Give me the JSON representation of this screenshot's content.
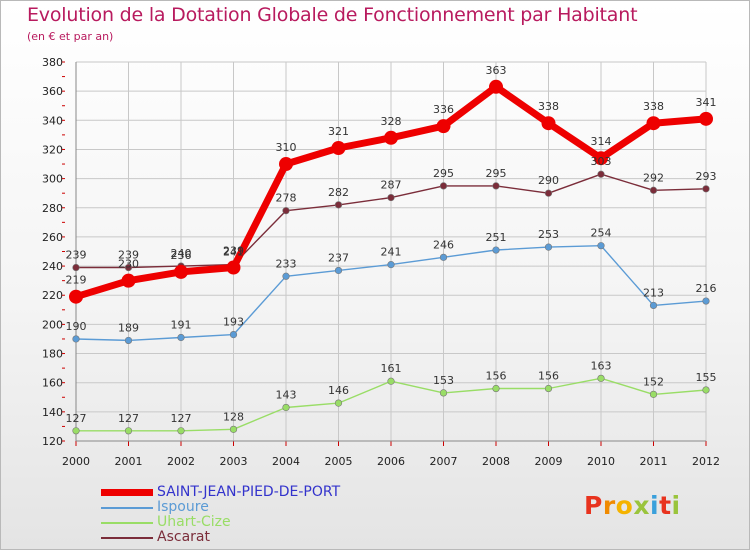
{
  "header": {
    "title": "Evolution de la Dotation Globale de Fonctionnement par Habitant",
    "subtitle": "(en € et par an)"
  },
  "brand": {
    "logo_text": "Proxiti",
    "colors": [
      "#e8331e",
      "#f08a00",
      "#f5b300",
      "#9ac43c",
      "#3aa0db",
      "#e8331e",
      "#9ac43c"
    ]
  },
  "colors": {
    "title": "#b81a5e",
    "grid": "#c8c8c8",
    "axis_tick_marks": "#cc0000"
  },
  "chart_data": {
    "type": "line",
    "title": "Evolution de la Dotation Globale de Fonctionnement par Habitant",
    "subtitle": "(en € et par an)",
    "x": [
      "2000",
      "2001",
      "2002",
      "2003",
      "2004",
      "2005",
      "2006",
      "2007",
      "2008",
      "2009",
      "2010",
      "2011",
      "2012"
    ],
    "ylim": [
      120,
      380
    ],
    "yticks": [
      120,
      140,
      160,
      180,
      200,
      220,
      240,
      260,
      280,
      300,
      320,
      340,
      360,
      380
    ],
    "grid": true,
    "legend_position": "bottom-left",
    "series": [
      {
        "name": "SAINT-JEAN-PIED-DE-PORT",
        "color": "#ee0000",
        "emphasis": true,
        "legend_color": "#3333cc",
        "values": [
          219,
          230,
          236,
          239,
          310,
          321,
          328,
          336,
          363,
          338,
          314,
          338,
          341
        ]
      },
      {
        "name": "Ispoure",
        "color": "#5b9bd5",
        "emphasis": false,
        "values": [
          190,
          189,
          191,
          193,
          233,
          237,
          241,
          246,
          251,
          253,
          254,
          213,
          216
        ]
      },
      {
        "name": "Uhart-Cize",
        "color": "#99dd66",
        "emphasis": false,
        "values": [
          127,
          127,
          127,
          128,
          143,
          146,
          161,
          153,
          156,
          156,
          163,
          152,
          155
        ]
      },
      {
        "name": "Ascarat",
        "color": "#7b2d3a",
        "emphasis": false,
        "values": [
          239,
          239,
          240,
          241,
          278,
          282,
          287,
          295,
          295,
          290,
          303,
          292,
          293
        ]
      }
    ]
  }
}
